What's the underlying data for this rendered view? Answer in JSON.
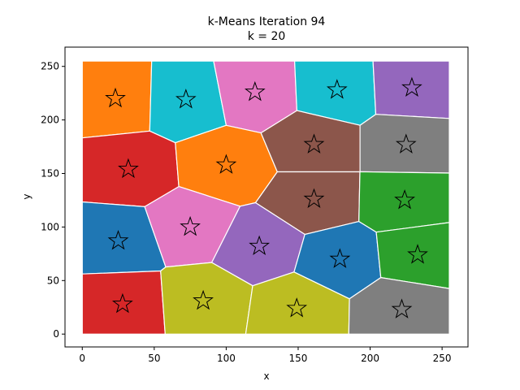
{
  "chart_data": {
    "type": "scatter",
    "title_line1": "k-Means Iteration 94",
    "title_line2": "k = 20",
    "xlabel": "x",
    "ylabel": "y",
    "xlim": [
      -12,
      268
    ],
    "ylim": [
      -12,
      268
    ],
    "xticks": [
      0,
      50,
      100,
      150,
      200,
      250
    ],
    "yticks": [
      0,
      50,
      100,
      150,
      200,
      250
    ],
    "data_extent": [
      0,
      255
    ],
    "grid": false,
    "legend": "none",
    "centroid_marker": "star",
    "clusters": [
      {
        "color": "#ff7f0e",
        "centroid": [
          23,
          220
        ]
      },
      {
        "color": "#17becf",
        "centroid": [
          72,
          219
        ]
      },
      {
        "color": "#e377c2",
        "centroid": [
          120,
          226
        ]
      },
      {
        "color": "#17becf",
        "centroid": [
          177,
          228
        ]
      },
      {
        "color": "#9467bd",
        "centroid": [
          229,
          230
        ]
      },
      {
        "color": "#d62728",
        "centroid": [
          32,
          154
        ]
      },
      {
        "color": "#ff7f0e",
        "centroid": [
          100,
          158
        ]
      },
      {
        "color": "#8c564b",
        "centroid": [
          161,
          177
        ]
      },
      {
        "color": "#8c564b",
        "centroid": [
          161,
          126
        ]
      },
      {
        "color": "#7f7f7f",
        "centroid": [
          225,
          177
        ]
      },
      {
        "color": "#2ca02c",
        "centroid": [
          224,
          125
        ]
      },
      {
        "color": "#1f77b4",
        "centroid": [
          25,
          87
        ]
      },
      {
        "color": "#e377c2",
        "centroid": [
          75,
          100
        ]
      },
      {
        "color": "#9467bd",
        "centroid": [
          123,
          82
        ]
      },
      {
        "color": "#1f77b4",
        "centroid": [
          179,
          70
        ]
      },
      {
        "color": "#2ca02c",
        "centroid": [
          233,
          74
        ]
      },
      {
        "color": "#d62728",
        "centroid": [
          28,
          28
        ]
      },
      {
        "color": "#bcbd22",
        "centroid": [
          84,
          31
        ]
      },
      {
        "color": "#bcbd22",
        "centroid": [
          149,
          24
        ]
      },
      {
        "color": "#7f7f7f",
        "centroid": [
          222,
          23
        ]
      }
    ]
  }
}
